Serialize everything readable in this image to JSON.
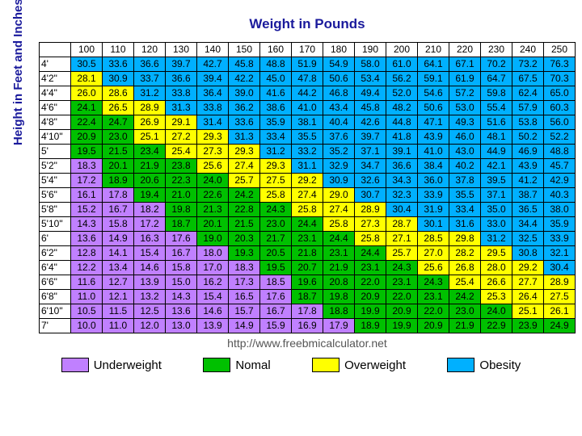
{
  "title": "Weight in Pounds",
  "ylabel": "Height in Feet and Inches",
  "footer_url": "http://www.freebmicalculator.net",
  "colors": {
    "underweight": "#c080ff",
    "normal": "#00c000",
    "overweight": "#ffff00",
    "obesity": "#00b0ff"
  },
  "legend": [
    {
      "key": "underweight",
      "label": "Underweight"
    },
    {
      "key": "normal",
      "label": "Nomal"
    },
    {
      "key": "overweight",
      "label": "Overweight"
    },
    {
      "key": "obesity",
      "label": "Obesity"
    }
  ],
  "weights": [
    100,
    110,
    120,
    130,
    140,
    150,
    160,
    170,
    180,
    190,
    200,
    210,
    220,
    230,
    240,
    250
  ],
  "heights": [
    "4'",
    "4'2\"",
    "4'4\"",
    "4'6\"",
    "4'8\"",
    "4'10\"",
    "5'",
    "5'2\"",
    "5'4\"",
    "5'6\"",
    "5'8\"",
    "5'10\"",
    "6'",
    "6'2\"",
    "6'4\"",
    "6'6\"",
    "6'8\"",
    "6'10\"",
    "7'"
  ],
  "cells": [
    [
      [
        "30.5",
        "b"
      ],
      [
        "33.6",
        "b"
      ],
      [
        "36.6",
        "b"
      ],
      [
        "39.7",
        "b"
      ],
      [
        "42.7",
        "b"
      ],
      [
        "45.8",
        "b"
      ],
      [
        "48.8",
        "b"
      ],
      [
        "51.9",
        "b"
      ],
      [
        "54.9",
        "b"
      ],
      [
        "58.0",
        "b"
      ],
      [
        "61.0",
        "b"
      ],
      [
        "64.1",
        "b"
      ],
      [
        "67.1",
        "b"
      ],
      [
        "70.2",
        "b"
      ],
      [
        "73.2",
        "b"
      ],
      [
        "76.3",
        "b"
      ]
    ],
    [
      [
        "28.1",
        "o"
      ],
      [
        "30.9",
        "b"
      ],
      [
        "33.7",
        "b"
      ],
      [
        "36.6",
        "b"
      ],
      [
        "39.4",
        "b"
      ],
      [
        "42.2",
        "b"
      ],
      [
        "45.0",
        "b"
      ],
      [
        "47.8",
        "b"
      ],
      [
        "50.6",
        "b"
      ],
      [
        "53.4",
        "b"
      ],
      [
        "56.2",
        "b"
      ],
      [
        "59.1",
        "b"
      ],
      [
        "61.9",
        "b"
      ],
      [
        "64.7",
        "b"
      ],
      [
        "67.5",
        "b"
      ],
      [
        "70.3",
        "b"
      ]
    ],
    [
      [
        "26.0",
        "o"
      ],
      [
        "28.6",
        "o"
      ],
      [
        "31.2",
        "b"
      ],
      [
        "33.8",
        "b"
      ],
      [
        "36.4",
        "b"
      ],
      [
        "39.0",
        "b"
      ],
      [
        "41.6",
        "b"
      ],
      [
        "44.2",
        "b"
      ],
      [
        "46.8",
        "b"
      ],
      [
        "49.4",
        "b"
      ],
      [
        "52.0",
        "b"
      ],
      [
        "54.6",
        "b"
      ],
      [
        "57.2",
        "b"
      ],
      [
        "59.8",
        "b"
      ],
      [
        "62.4",
        "b"
      ],
      [
        "65.0",
        "b"
      ]
    ],
    [
      [
        "24.1",
        "n"
      ],
      [
        "26.5",
        "o"
      ],
      [
        "28.9",
        "o"
      ],
      [
        "31.3",
        "b"
      ],
      [
        "33.8",
        "b"
      ],
      [
        "36.2",
        "b"
      ],
      [
        "38.6",
        "b"
      ],
      [
        "41.0",
        "b"
      ],
      [
        "43.4",
        "b"
      ],
      [
        "45.8",
        "b"
      ],
      [
        "48.2",
        "b"
      ],
      [
        "50.6",
        "b"
      ],
      [
        "53.0",
        "b"
      ],
      [
        "55.4",
        "b"
      ],
      [
        "57.9",
        "b"
      ],
      [
        "60.3",
        "b"
      ]
    ],
    [
      [
        "22.4",
        "n"
      ],
      [
        "24.7",
        "n"
      ],
      [
        "26.9",
        "o"
      ],
      [
        "29.1",
        "o"
      ],
      [
        "31.4",
        "b"
      ],
      [
        "33.6",
        "b"
      ],
      [
        "35.9",
        "b"
      ],
      [
        "38.1",
        "b"
      ],
      [
        "40.4",
        "b"
      ],
      [
        "42.6",
        "b"
      ],
      [
        "44.8",
        "b"
      ],
      [
        "47.1",
        "b"
      ],
      [
        "49.3",
        "b"
      ],
      [
        "51.6",
        "b"
      ],
      [
        "53.8",
        "b"
      ],
      [
        "56.0",
        "b"
      ]
    ],
    [
      [
        "20.9",
        "n"
      ],
      [
        "23.0",
        "n"
      ],
      [
        "25.1",
        "o"
      ],
      [
        "27.2",
        "o"
      ],
      [
        "29.3",
        "o"
      ],
      [
        "31.3",
        "b"
      ],
      [
        "33.4",
        "b"
      ],
      [
        "35.5",
        "b"
      ],
      [
        "37.6",
        "b"
      ],
      [
        "39.7",
        "b"
      ],
      [
        "41.8",
        "b"
      ],
      [
        "43.9",
        "b"
      ],
      [
        "46.0",
        "b"
      ],
      [
        "48.1",
        "b"
      ],
      [
        "50.2",
        "b"
      ],
      [
        "52.2",
        "b"
      ]
    ],
    [
      [
        "19.5",
        "n"
      ],
      [
        "21.5",
        "n"
      ],
      [
        "23.4",
        "n"
      ],
      [
        "25.4",
        "o"
      ],
      [
        "27.3",
        "o"
      ],
      [
        "29.3",
        "o"
      ],
      [
        "31.2",
        "b"
      ],
      [
        "33.2",
        "b"
      ],
      [
        "35.2",
        "b"
      ],
      [
        "37.1",
        "b"
      ],
      [
        "39.1",
        "b"
      ],
      [
        "41.0",
        "b"
      ],
      [
        "43.0",
        "b"
      ],
      [
        "44.9",
        "b"
      ],
      [
        "46.9",
        "b"
      ],
      [
        "48.8",
        "b"
      ]
    ],
    [
      [
        "18.3",
        "u"
      ],
      [
        "20.1",
        "n"
      ],
      [
        "21.9",
        "n"
      ],
      [
        "23.8",
        "n"
      ],
      [
        "25.6",
        "o"
      ],
      [
        "27.4",
        "o"
      ],
      [
        "29.3",
        "o"
      ],
      [
        "31.1",
        "b"
      ],
      [
        "32.9",
        "b"
      ],
      [
        "34.7",
        "b"
      ],
      [
        "36.6",
        "b"
      ],
      [
        "38.4",
        "b"
      ],
      [
        "40.2",
        "b"
      ],
      [
        "42.1",
        "b"
      ],
      [
        "43.9",
        "b"
      ],
      [
        "45.7",
        "b"
      ]
    ],
    [
      [
        "17.2",
        "u"
      ],
      [
        "18.9",
        "n"
      ],
      [
        "20.6",
        "n"
      ],
      [
        "22.3",
        "n"
      ],
      [
        "24.0",
        "n"
      ],
      [
        "25.7",
        "o"
      ],
      [
        "27.5",
        "o"
      ],
      [
        "29.2",
        "o"
      ],
      [
        "30.9",
        "b"
      ],
      [
        "32.6",
        "b"
      ],
      [
        "34.3",
        "b"
      ],
      [
        "36.0",
        "b"
      ],
      [
        "37.8",
        "b"
      ],
      [
        "39.5",
        "b"
      ],
      [
        "41.2",
        "b"
      ],
      [
        "42.9",
        "b"
      ]
    ],
    [
      [
        "16.1",
        "u"
      ],
      [
        "17.8",
        "u"
      ],
      [
        "19.4",
        "n"
      ],
      [
        "21.0",
        "n"
      ],
      [
        "22.6",
        "n"
      ],
      [
        "24.2",
        "n"
      ],
      [
        "25.8",
        "o"
      ],
      [
        "27.4",
        "o"
      ],
      [
        "29.0",
        "o"
      ],
      [
        "30.7",
        "b"
      ],
      [
        "32.3",
        "b"
      ],
      [
        "33.9",
        "b"
      ],
      [
        "35.5",
        "b"
      ],
      [
        "37.1",
        "b"
      ],
      [
        "38.7",
        "b"
      ],
      [
        "40.3",
        "b"
      ]
    ],
    [
      [
        "15.2",
        "u"
      ],
      [
        "16.7",
        "u"
      ],
      [
        "18.2",
        "u"
      ],
      [
        "19.8",
        "n"
      ],
      [
        "21.3",
        "n"
      ],
      [
        "22.8",
        "n"
      ],
      [
        "24.3",
        "n"
      ],
      [
        "25.8",
        "o"
      ],
      [
        "27.4",
        "o"
      ],
      [
        "28.9",
        "o"
      ],
      [
        "30.4",
        "b"
      ],
      [
        "31.9",
        "b"
      ],
      [
        "33.4",
        "b"
      ],
      [
        "35.0",
        "b"
      ],
      [
        "36.5",
        "b"
      ],
      [
        "38.0",
        "b"
      ]
    ],
    [
      [
        "14.3",
        "u"
      ],
      [
        "15.8",
        "u"
      ],
      [
        "17.2",
        "u"
      ],
      [
        "18.7",
        "n"
      ],
      [
        "20.1",
        "n"
      ],
      [
        "21.5",
        "n"
      ],
      [
        "23.0",
        "n"
      ],
      [
        "24.4",
        "n"
      ],
      [
        "25.8",
        "o"
      ],
      [
        "27.3",
        "o"
      ],
      [
        "28.7",
        "o"
      ],
      [
        "30.1",
        "b"
      ],
      [
        "31.6",
        "b"
      ],
      [
        "33.0",
        "b"
      ],
      [
        "34.4",
        "b"
      ],
      [
        "35.9",
        "b"
      ]
    ],
    [
      [
        "13.6",
        "u"
      ],
      [
        "14.9",
        "u"
      ],
      [
        "16.3",
        "u"
      ],
      [
        "17.6",
        "u"
      ],
      [
        "19.0",
        "n"
      ],
      [
        "20.3",
        "n"
      ],
      [
        "21.7",
        "n"
      ],
      [
        "23.1",
        "n"
      ],
      [
        "24.4",
        "n"
      ],
      [
        "25.8",
        "o"
      ],
      [
        "27.1",
        "o"
      ],
      [
        "28.5",
        "o"
      ],
      [
        "29.8",
        "o"
      ],
      [
        "31.2",
        "b"
      ],
      [
        "32.5",
        "b"
      ],
      [
        "33.9",
        "b"
      ]
    ],
    [
      [
        "12.8",
        "u"
      ],
      [
        "14.1",
        "u"
      ],
      [
        "15.4",
        "u"
      ],
      [
        "16.7",
        "u"
      ],
      [
        "18.0",
        "u"
      ],
      [
        "19.3",
        "n"
      ],
      [
        "20.5",
        "n"
      ],
      [
        "21.8",
        "n"
      ],
      [
        "23.1",
        "n"
      ],
      [
        "24.4",
        "n"
      ],
      [
        "25.7",
        "o"
      ],
      [
        "27.0",
        "o"
      ],
      [
        "28.2",
        "o"
      ],
      [
        "29.5",
        "o"
      ],
      [
        "30.8",
        "b"
      ],
      [
        "32.1",
        "b"
      ]
    ],
    [
      [
        "12.2",
        "u"
      ],
      [
        "13.4",
        "u"
      ],
      [
        "14.6",
        "u"
      ],
      [
        "15.8",
        "u"
      ],
      [
        "17.0",
        "u"
      ],
      [
        "18.3",
        "u"
      ],
      [
        "19.5",
        "n"
      ],
      [
        "20.7",
        "n"
      ],
      [
        "21.9",
        "n"
      ],
      [
        "23.1",
        "n"
      ],
      [
        "24.3",
        "n"
      ],
      [
        "25.6",
        "o"
      ],
      [
        "26.8",
        "o"
      ],
      [
        "28.0",
        "o"
      ],
      [
        "29.2",
        "o"
      ],
      [
        "30.4",
        "b"
      ]
    ],
    [
      [
        "11.6",
        "u"
      ],
      [
        "12.7",
        "u"
      ],
      [
        "13.9",
        "u"
      ],
      [
        "15.0",
        "u"
      ],
      [
        "16.2",
        "u"
      ],
      [
        "17.3",
        "u"
      ],
      [
        "18.5",
        "u"
      ],
      [
        "19.6",
        "n"
      ],
      [
        "20.8",
        "n"
      ],
      [
        "22.0",
        "n"
      ],
      [
        "23.1",
        "n"
      ],
      [
        "24.3",
        "n"
      ],
      [
        "25.4",
        "o"
      ],
      [
        "26.6",
        "o"
      ],
      [
        "27.7",
        "o"
      ],
      [
        "28.9",
        "o"
      ]
    ],
    [
      [
        "11.0",
        "u"
      ],
      [
        "12.1",
        "u"
      ],
      [
        "13.2",
        "u"
      ],
      [
        "14.3",
        "u"
      ],
      [
        "15.4",
        "u"
      ],
      [
        "16.5",
        "u"
      ],
      [
        "17.6",
        "u"
      ],
      [
        "18.7",
        "n"
      ],
      [
        "19.8",
        "n"
      ],
      [
        "20.9",
        "n"
      ],
      [
        "22.0",
        "n"
      ],
      [
        "23.1",
        "n"
      ],
      [
        "24.2",
        "n"
      ],
      [
        "25.3",
        "o"
      ],
      [
        "26.4",
        "o"
      ],
      [
        "27.5",
        "o"
      ]
    ],
    [
      [
        "10.5",
        "u"
      ],
      [
        "11.5",
        "u"
      ],
      [
        "12.5",
        "u"
      ],
      [
        "13.6",
        "u"
      ],
      [
        "14.6",
        "u"
      ],
      [
        "15.7",
        "u"
      ],
      [
        "16.7",
        "u"
      ],
      [
        "17.8",
        "u"
      ],
      [
        "18.8",
        "n"
      ],
      [
        "19.9",
        "n"
      ],
      [
        "20.9",
        "n"
      ],
      [
        "22.0",
        "n"
      ],
      [
        "23.0",
        "n"
      ],
      [
        "24.0",
        "n"
      ],
      [
        "25.1",
        "o"
      ],
      [
        "26.1",
        "o"
      ]
    ],
    [
      [
        "10.0",
        "u"
      ],
      [
        "11.0",
        "u"
      ],
      [
        "12.0",
        "u"
      ],
      [
        "13.0",
        "u"
      ],
      [
        "13.9",
        "u"
      ],
      [
        "14.9",
        "u"
      ],
      [
        "15.9",
        "u"
      ],
      [
        "16.9",
        "u"
      ],
      [
        "17.9",
        "u"
      ],
      [
        "18.9",
        "n"
      ],
      [
        "19.9",
        "n"
      ],
      [
        "20.9",
        "n"
      ],
      [
        "21.9",
        "n"
      ],
      [
        "22.9",
        "n"
      ],
      [
        "23.9",
        "n"
      ],
      [
        "24.9",
        "n"
      ]
    ]
  ]
}
